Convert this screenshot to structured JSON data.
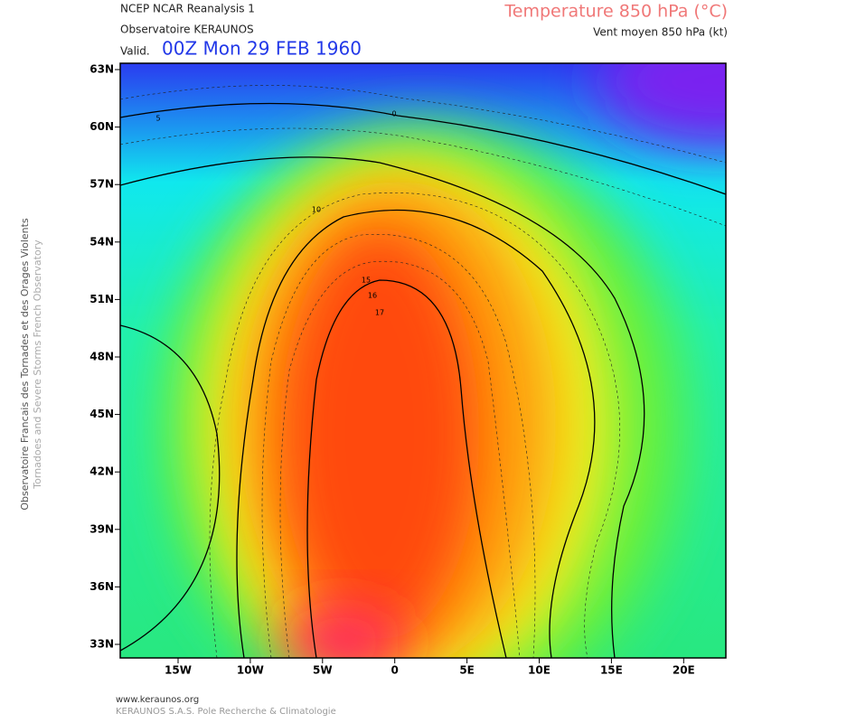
{
  "header": {
    "source": "NCEP NCAR Reanalysis 1",
    "observatory": "Observatoire KERAUNOS",
    "valid_prefix": "Valid.",
    "valid": "00Z Mon 29 FEB 1960",
    "title": "Temperature 850 hPa (°C)",
    "subtitle": "Vent moyen 850 hPa (kt)"
  },
  "map": {
    "lat_labels": [
      "63N",
      "60N",
      "57N",
      "54N",
      "51N",
      "48N",
      "45N",
      "42N",
      "39N",
      "36N",
      "33N"
    ],
    "lon_labels": [
      "15W",
      "10W",
      "5W",
      "0",
      "5E",
      "10E",
      "15E",
      "20E"
    ],
    "contour_labels": [
      "5",
      "0",
      "10",
      "15",
      "16",
      "17"
    ]
  },
  "side": {
    "line1": "Observatoire Francais des Tornades et des Orages Violents",
    "line2": "Tornadoes and Severe Storms French Observatory"
  },
  "footer": {
    "url": "www.keraunos.org",
    "company": "KERAUNOS S.A.S. Pole Recherche & Climatologie"
  }
}
